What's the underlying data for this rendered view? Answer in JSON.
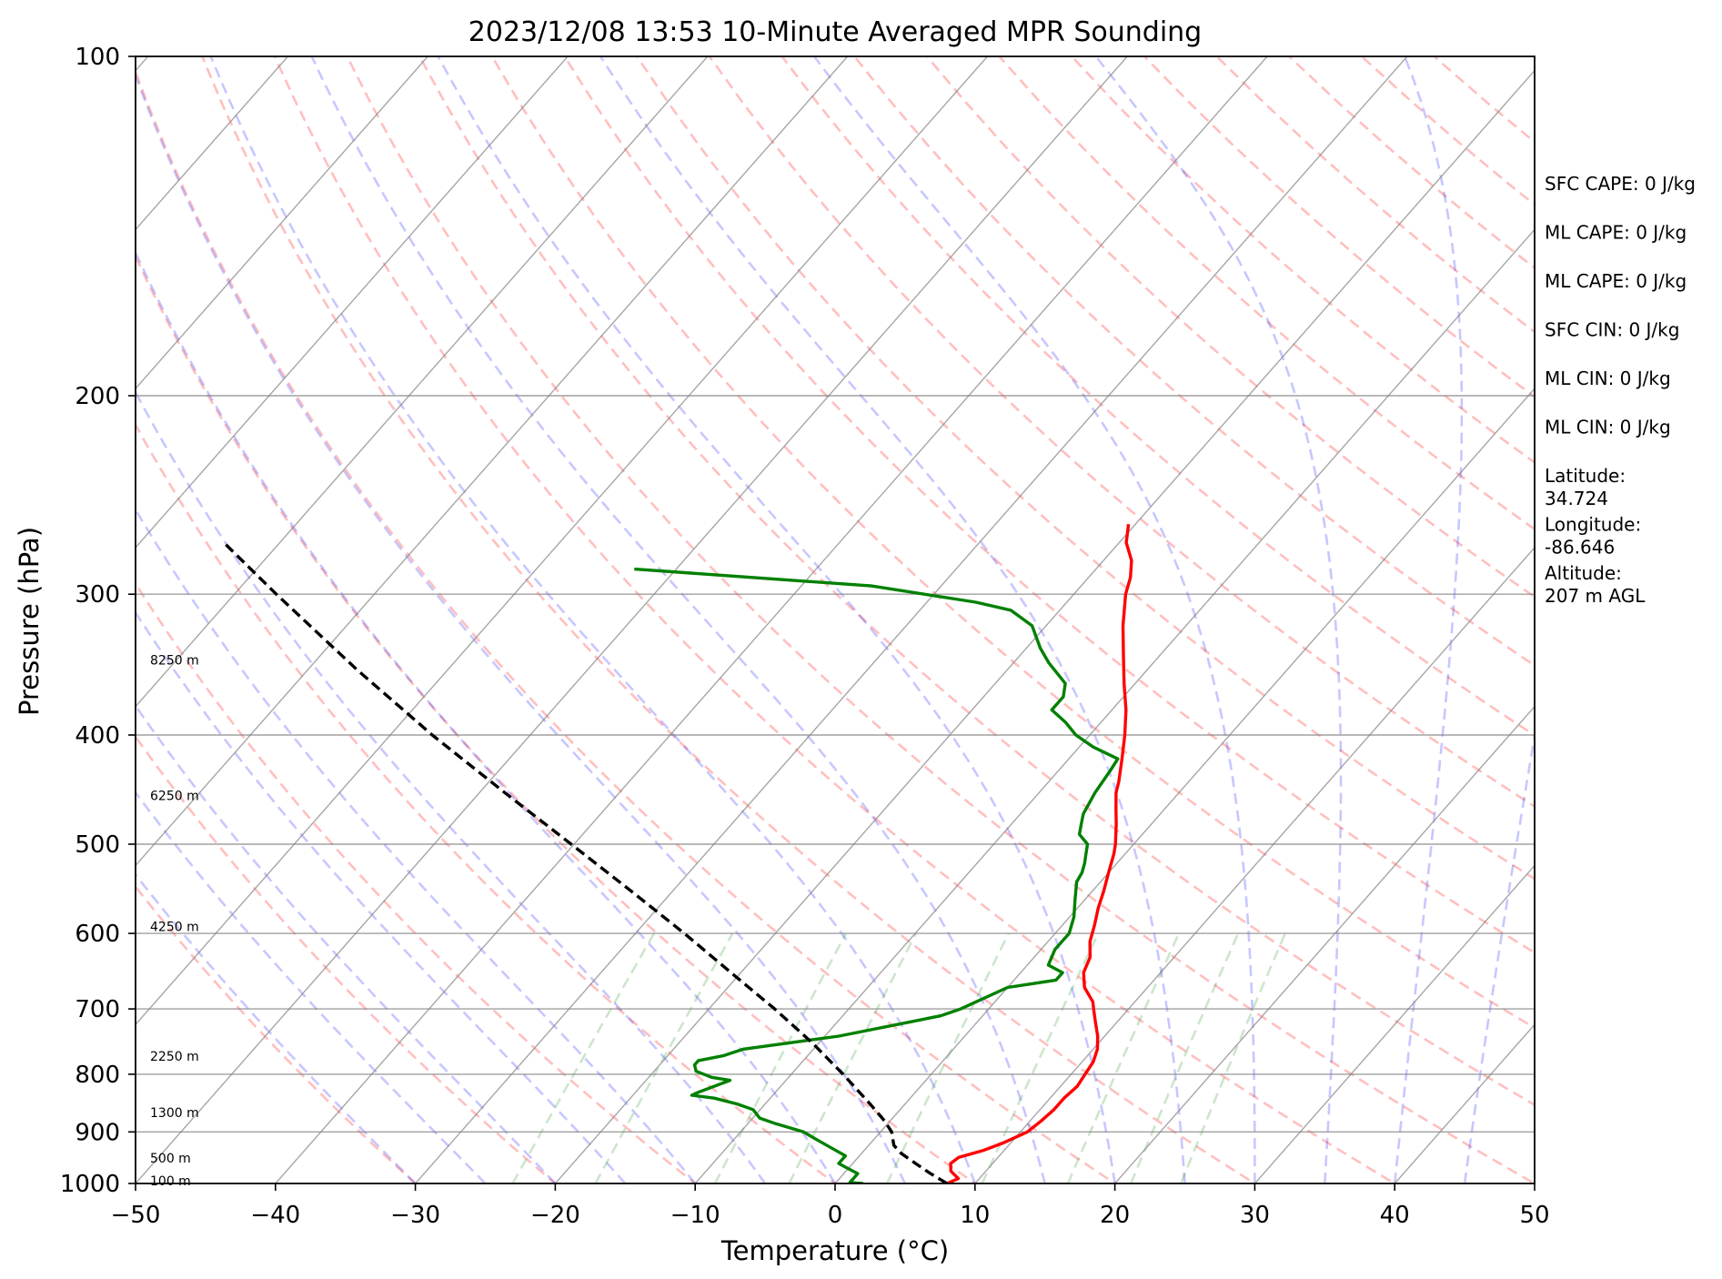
{
  "chart_data": {
    "type": "line",
    "title": "2023/12/08 13:53 10-Minute Averaged MPR Sounding",
    "xlabel": "Temperature (°C)",
    "ylabel": "Pressure (hPa)",
    "xlim": [
      -50,
      50
    ],
    "ylim": [
      1000,
      100
    ],
    "y_scale": "log",
    "skew": "skew-T",
    "x_ticks": [
      "−50",
      "−40",
      "−30",
      "−20",
      "−10",
      "0",
      "10",
      "20",
      "30",
      "40",
      "50"
    ],
    "y_ticks": [
      "100",
      "200",
      "300",
      "400",
      "500",
      "600",
      "700",
      "800",
      "900",
      "1000"
    ],
    "height_labels": [
      {
        "text": "100 m",
        "p": 1000
      },
      {
        "text": "500 m",
        "p": 955
      },
      {
        "text": "1300 m",
        "p": 870
      },
      {
        "text": "2250 m",
        "p": 775
      },
      {
        "text": "4250 m",
        "p": 595
      },
      {
        "text": "6250 m",
        "p": 455
      },
      {
        "text": "8250 m",
        "p": 345
      }
    ],
    "series": [
      {
        "role": "temperature",
        "color": "#ff0000",
        "points": [
          [
            1000,
            8.0
          ],
          [
            990,
            8.5
          ],
          [
            975,
            7.5
          ],
          [
            960,
            7.0
          ],
          [
            948,
            7.2
          ],
          [
            935,
            8.5
          ],
          [
            920,
            9.5
          ],
          [
            900,
            10.5
          ],
          [
            880,
            10.8
          ],
          [
            860,
            11.0
          ],
          [
            840,
            11.0
          ],
          [
            820,
            11.2
          ],
          [
            800,
            11.0
          ],
          [
            780,
            10.8
          ],
          [
            760,
            10.3
          ],
          [
            740,
            9.5
          ],
          [
            720,
            8.5
          ],
          [
            700,
            7.5
          ],
          [
            690,
            7.0
          ],
          [
            670,
            5.5
          ],
          [
            650,
            4.5
          ],
          [
            630,
            4.0
          ],
          [
            610,
            3.0
          ],
          [
            590,
            2.3
          ],
          [
            570,
            1.5
          ],
          [
            550,
            0.8
          ],
          [
            530,
            0.0
          ],
          [
            510,
            -0.8
          ],
          [
            500,
            -1.3
          ],
          [
            480,
            -2.5
          ],
          [
            465,
            -3.5
          ],
          [
            450,
            -4.5
          ],
          [
            440,
            -5.0
          ],
          [
            420,
            -6.2
          ],
          [
            400,
            -7.5
          ],
          [
            380,
            -9.0
          ],
          [
            360,
            -10.8
          ],
          [
            340,
            -12.6
          ],
          [
            320,
            -14.5
          ],
          [
            300,
            -16.3
          ],
          [
            290,
            -17.0
          ],
          [
            280,
            -18.0
          ],
          [
            270,
            -19.5
          ],
          [
            260,
            -20.5
          ]
        ]
      },
      {
        "role": "dewpoint",
        "color": "#008000",
        "points": [
          [
            1000,
            2.0
          ],
          [
            998,
            1.0
          ],
          [
            990,
            1.0
          ],
          [
            980,
            1.0
          ],
          [
            970,
            0.0
          ],
          [
            960,
            -1.0
          ],
          [
            945,
            -1.0
          ],
          [
            935,
            -2.0
          ],
          [
            915,
            -4.0
          ],
          [
            900,
            -5.5
          ],
          [
            885,
            -8.0
          ],
          [
            875,
            -9.5
          ],
          [
            860,
            -10.5
          ],
          [
            850,
            -12.0
          ],
          [
            840,
            -14.0
          ],
          [
            835,
            -15.8
          ],
          [
            830,
            -15.5
          ],
          [
            810,
            -14.0
          ],
          [
            805,
            -15.5
          ],
          [
            795,
            -17.0
          ],
          [
            785,
            -17.5
          ],
          [
            778,
            -17.5
          ],
          [
            770,
            -16.0
          ],
          [
            760,
            -15.0
          ],
          [
            740,
            -9.0
          ],
          [
            710,
            -3.0
          ],
          [
            700,
            -2.0
          ],
          [
            670,
            0.0
          ],
          [
            660,
            3.0
          ],
          [
            650,
            3.0
          ],
          [
            640,
            1.5
          ],
          [
            620,
            1.0
          ],
          [
            600,
            1.0
          ],
          [
            580,
            0.3
          ],
          [
            560,
            -0.7
          ],
          [
            540,
            -1.7
          ],
          [
            530,
            -1.9
          ],
          [
            520,
            -2.3
          ],
          [
            510,
            -2.8
          ],
          [
            500,
            -3.3
          ],
          [
            490,
            -4.5
          ],
          [
            480,
            -5.0
          ],
          [
            470,
            -5.5
          ],
          [
            450,
            -6.0
          ],
          [
            430,
            -6.3
          ],
          [
            420,
            -6.5
          ],
          [
            410,
            -9.0
          ],
          [
            400,
            -11.0
          ],
          [
            390,
            -12.5
          ],
          [
            380,
            -14.3
          ],
          [
            370,
            -14.3
          ],
          [
            360,
            -15.0
          ],
          [
            345,
            -17.5
          ],
          [
            335,
            -19.0
          ],
          [
            320,
            -21.0
          ],
          [
            310,
            -23.5
          ],
          [
            305,
            -26.5
          ],
          [
            295,
            -35.0
          ],
          [
            285,
            -53.0
          ]
        ]
      },
      {
        "role": "parcel profile",
        "color": "#000000",
        "style": "dashed",
        "points": [
          [
            1000,
            8.0
          ],
          [
            980,
            6.2
          ],
          [
            960,
            4.5
          ],
          [
            940,
            2.8
          ],
          [
            925,
            1.8
          ],
          [
            900,
            0.8
          ],
          [
            880,
            -0.4
          ],
          [
            850,
            -2.5
          ],
          [
            800,
            -6.3
          ],
          [
            750,
            -10.5
          ],
          [
            700,
            -15.3
          ],
          [
            650,
            -20.7
          ],
          [
            600,
            -26.5
          ],
          [
            550,
            -33.0
          ],
          [
            500,
            -40.2
          ],
          [
            450,
            -48.2
          ],
          [
            400,
            -57.0
          ],
          [
            350,
            -66.5
          ],
          [
            300,
            -77.0
          ],
          [
            270,
            -84.0
          ]
        ]
      }
    ],
    "side_annotations": [
      "SFC CAPE: 0 J/kg",
      "ML CAPE: 0 J/kg",
      "ML CAPE: 0 J/kg",
      "SFC CIN: 0 J/kg",
      "ML CIN: 0 J/kg",
      "ML CIN: 0 J/kg",
      "Latitude:\n34.724",
      "Longitude:\n-86.646",
      "Altitude:\n207 m AGL"
    ],
    "reference_lines": {
      "dry_adiabats": {
        "color": "#ff0000",
        "style": "dashed"
      },
      "moist_adiabats": {
        "color": "#0000ff",
        "style": "dashed"
      },
      "mixing_ratio": {
        "color": "#008000",
        "style": "dashed"
      },
      "isotherms": {
        "color": "#808080",
        "style": "solid"
      },
      "isobars": {
        "color": "#808080",
        "style": "solid"
      }
    },
    "grid": true
  }
}
